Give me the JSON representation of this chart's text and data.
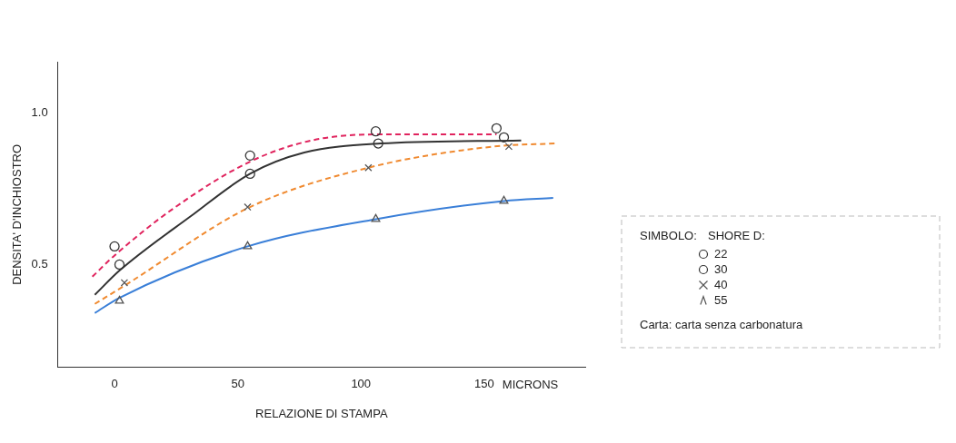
{
  "chart_data": {
    "type": "scatter",
    "xlabel": "RELAZIONE DI STAMPA",
    "ylabel": "DENSITA' D'INCHIOSTRO",
    "legend_title": "SHORE D:",
    "xlim": [
      -23,
      191
    ],
    "xticks": [
      0,
      50,
      100,
      150
    ],
    "ylim": [
      0.16,
      1.17
    ],
    "yticks": [
      {
        "value": 0.5,
        "label": "0.5"
      },
      {
        "value": 1,
        "label": "1.0"
      }
    ],
    "grid": false,
    "legend": "right",
    "annotations": [
      "MICRONS",
      "SIMBOLO:",
      "Carta: carta senza carbonatura"
    ],
    "series": [
      {
        "name": "22",
        "marker": "circle",
        "color": "#333333",
        "x": [
          0,
          55,
          106,
          155
        ],
        "values": [
          0.56,
          0.86,
          0.94,
          0.95
        ]
      },
      {
        "name": "30",
        "marker": "circle",
        "color": "#333333",
        "x": [
          2,
          55,
          107,
          158
        ],
        "values": [
          0.5,
          0.8,
          0.9,
          0.92
        ]
      },
      {
        "name": "40",
        "marker": "cross",
        "color": "#555555",
        "x": [
          4,
          54,
          103,
          160
        ],
        "values": [
          0.44,
          0.69,
          0.82,
          0.89
        ]
      },
      {
        "name": "55",
        "marker": "triangle",
        "color": "#555555",
        "x": [
          2,
          54,
          106,
          158
        ],
        "values": [
          0.38,
          0.56,
          0.65,
          0.71
        ]
      },
      {
        "type": "line",
        "line_style": "dashed",
        "color": "#e0245e",
        "x": [
          -9,
          0,
          23,
          55,
          80,
          107,
          155
        ],
        "values": [
          0.46,
          0.53,
          0.68,
          0.84,
          0.91,
          0.93,
          0.93
        ]
      },
      {
        "type": "line",
        "line_style": "solid",
        "color": "#333333",
        "x": [
          -8,
          2,
          31,
          55,
          77,
          108,
          165
        ],
        "values": [
          0.4,
          0.48,
          0.66,
          0.8,
          0.87,
          0.9,
          0.91
        ]
      },
      {
        "type": "line",
        "line_style": "dashed",
        "color": "#f08a30",
        "x": [
          -8,
          4,
          55,
          103,
          154,
          179
        ],
        "values": [
          0.37,
          0.43,
          0.69,
          0.82,
          0.89,
          0.9
        ]
      },
      {
        "type": "line",
        "line_style": "solid",
        "color": "#3a7fd8",
        "x": [
          -8,
          2,
          54,
          106,
          158,
          178
        ],
        "values": [
          0.34,
          0.39,
          0.56,
          0.65,
          0.71,
          0.72
        ]
      }
    ]
  }
}
